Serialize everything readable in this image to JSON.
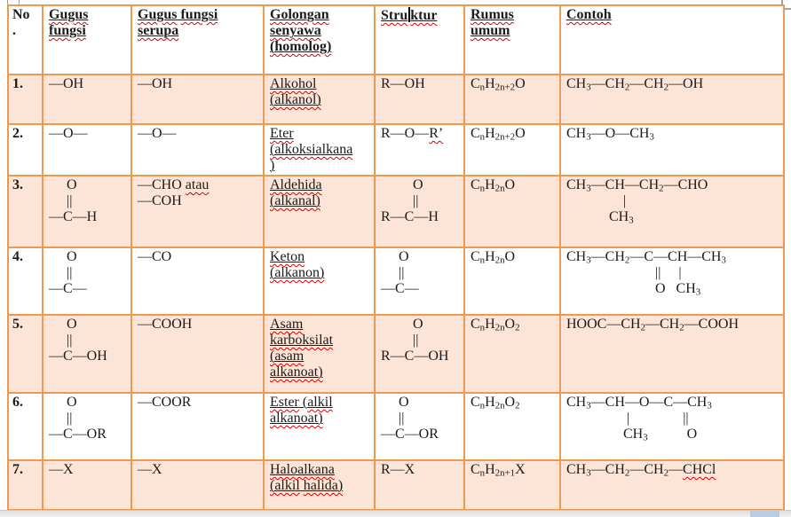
{
  "table": {
    "border_color": "#ED9853",
    "shade_color": "#FCE4D6",
    "squiggle_color": "#e00000",
    "header": [
      "No\n.",
      "~Gugus~\n~fungsi~",
      "~Gugus~ ~fungsi~\n~serupa~",
      "~Golongan~\n~senyawa~\n~(homolog)~",
      "~Stru^ktur~",
      "~Rumus~\n~umum~",
      "~Contoh~"
    ],
    "rows": [
      {
        "no": "1.",
        "gugus": "—OH",
        "serupa": "—OH",
        "golongan": "~Alkohol~\n~(alkanol)~",
        "struktur": "R—OH",
        "rumus": "C_n_H_2n+2_O",
        "contoh": "CH_3_—CH_2_—CH_2_—OH"
      },
      {
        "no": "2.",
        "gugus": "—O—",
        "serupa": "—O—",
        "golongan": "~Eter~\n~(alkoksialkana~\n)",
        "struktur": "R—O—~R’~",
        "rumus": "C_n_H_2n+2_O",
        "contoh": "CH_3_—O—CH_3_"
      },
      {
        "no": "3.",
        "gugus": "     O\n     ||\n—C—H",
        "serupa": "—CHO ~atau~\n—COH",
        "golongan": "~Aldehida~\n~(alkanal)~",
        "struktur": "         O\n         ||\nR—C—H",
        "rumus": "C_n_H_2n_O",
        "contoh": "CH_3_—CH—CH_2_—CHO\n                |\n            CH_3_"
      },
      {
        "no": "4.",
        "gugus": "     O\n     ||\n—C—",
        "serupa": "—CO",
        "golongan": "~Keton~\n~(alkanon)~",
        "struktur": "     O\n     ||\n—C—",
        "rumus": "C_n_H_2n_O",
        "contoh": "CH_3_—CH_2_—C—CH—CH_3_\n                         ||     |\n                         O   CH_3_"
      },
      {
        "no": "5.",
        "gugus": "     O\n     ||\n—C—OH",
        "serupa": "—COOH",
        "golongan": "~Asam~\n~karboksilat~\n~(asam~\n~alkanoat)~",
        "struktur": "         O\n         ||\nR—C—OH",
        "rumus": "C_n_H_2n_O_2_",
        "contoh": "HOOC—CH_2_—CH_2_—COOH"
      },
      {
        "no": "6.",
        "gugus": "     O\n     ||\n—C—OR",
        "serupa": "—COOR",
        "golongan": "~Ester~ (~alkil~\n~alkanoat)~",
        "struktur": "     O\n     ||\n—C—OR",
        "rumus": "C_n_H_2n_O_2_",
        "contoh": "CH_3_—CH—O—C—CH_3_\n                 |               ||\n                CH_3_           O"
      },
      {
        "no": "7.",
        "gugus": "—X",
        "serupa": "—X",
        "golongan": "~Haloalkana~\n~(alkil~ ~halida)~",
        "struktur": "R—X",
        "rumus": "C_n_H_2n+1_X",
        "contoh": "CH_3_—CH_2_—CH_2_—~CHCl~"
      }
    ]
  },
  "scrollbar": {
    "thumb_color": "#b8cce4"
  }
}
